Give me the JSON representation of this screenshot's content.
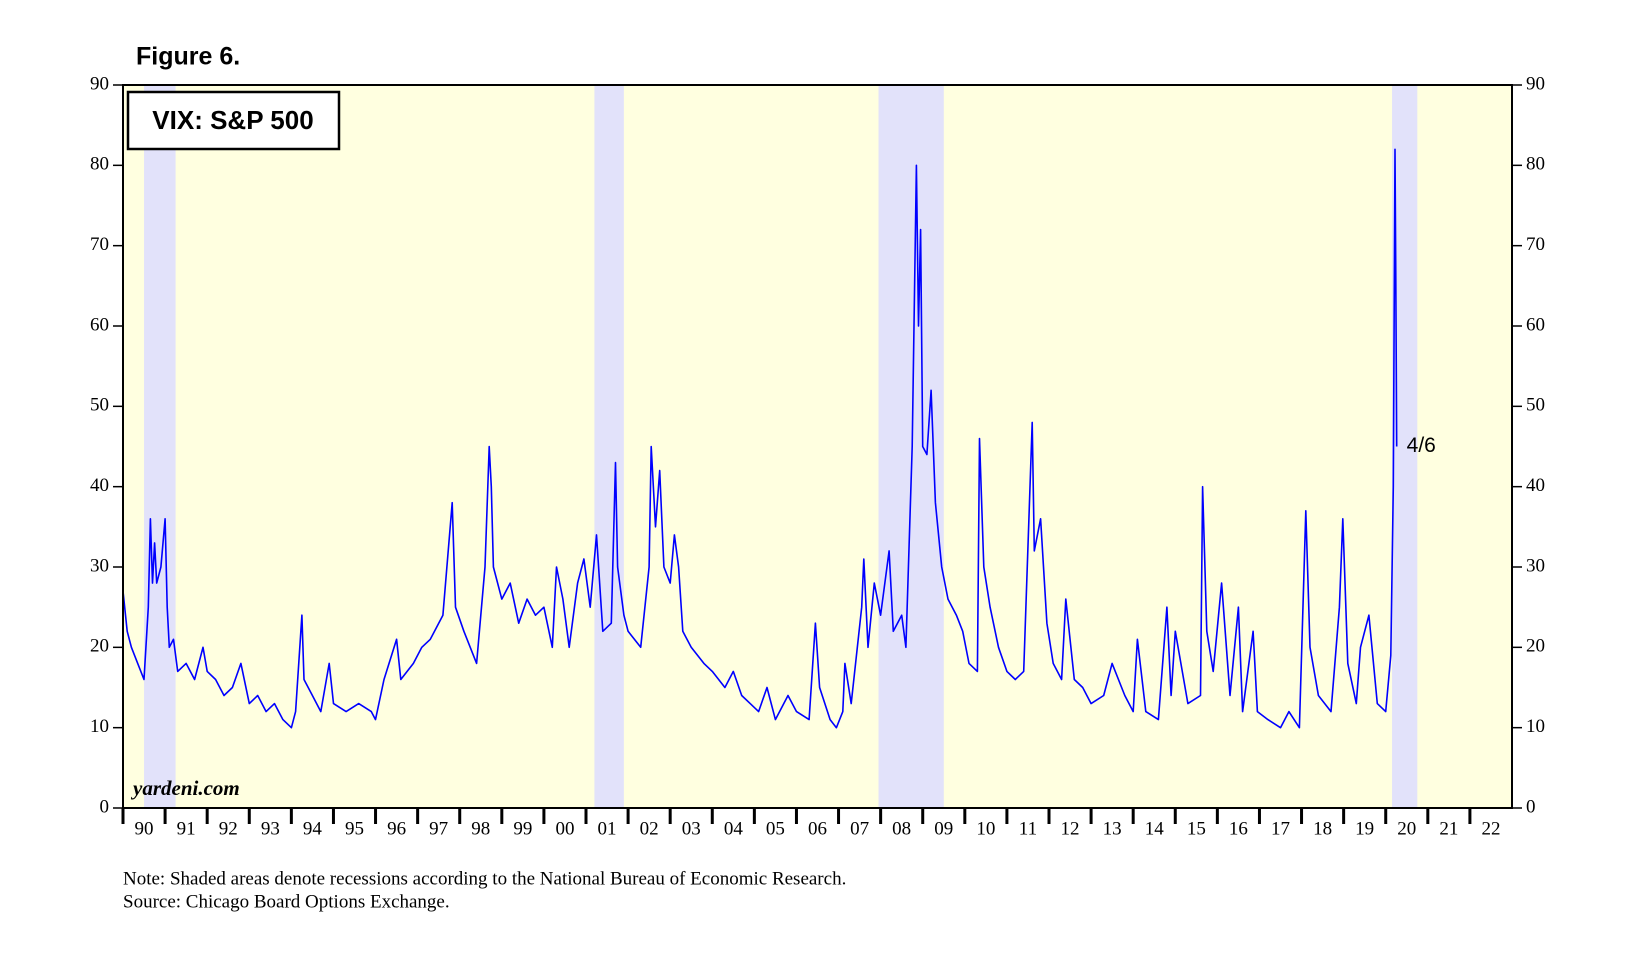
{
  "chart_data": {
    "type": "line",
    "figure_label": "Figure 6.",
    "title": "VIX: S&P 500",
    "watermark": "yardeni.com",
    "notes": [
      "Note: Shaded areas denote recessions according to the National Bureau of Economic Research.",
      "Source: Chicago Board Options Exchange."
    ],
    "annotation": "4/6",
    "color": "#0000ff",
    "background_color": "#ffffe0",
    "recession_color": "#e2e2fa",
    "recessions": [
      [
        1990.5,
        1991.25
      ],
      [
        2001.2,
        2001.9
      ],
      [
        2007.95,
        2009.5
      ],
      [
        2020.15,
        2020.75
      ]
    ],
    "xlim": [
      1990,
      2023
    ],
    "xticks": [
      {
        "value": 1990,
        "label": "90"
      },
      {
        "value": 1991,
        "label": "91"
      },
      {
        "value": 1992,
        "label": "92"
      },
      {
        "value": 1993,
        "label": "93"
      },
      {
        "value": 1994,
        "label": "94"
      },
      {
        "value": 1995,
        "label": "95"
      },
      {
        "value": 1996,
        "label": "96"
      },
      {
        "value": 1997,
        "label": "97"
      },
      {
        "value": 1998,
        "label": "98"
      },
      {
        "value": 1999,
        "label": "99"
      },
      {
        "value": 2000,
        "label": "00"
      },
      {
        "value": 2001,
        "label": "01"
      },
      {
        "value": 2002,
        "label": "02"
      },
      {
        "value": 2003,
        "label": "03"
      },
      {
        "value": 2004,
        "label": "04"
      },
      {
        "value": 2005,
        "label": "05"
      },
      {
        "value": 2006,
        "label": "06"
      },
      {
        "value": 2007,
        "label": "07"
      },
      {
        "value": 2008,
        "label": "08"
      },
      {
        "value": 2009,
        "label": "09"
      },
      {
        "value": 2010,
        "label": "10"
      },
      {
        "value": 2011,
        "label": "11"
      },
      {
        "value": 2012,
        "label": "12"
      },
      {
        "value": 2013,
        "label": "13"
      },
      {
        "value": 2014,
        "label": "14"
      },
      {
        "value": 2015,
        "label": "15"
      },
      {
        "value": 2016,
        "label": "16"
      },
      {
        "value": 2017,
        "label": "17"
      },
      {
        "value": 2018,
        "label": "18"
      },
      {
        "value": 2019,
        "label": "19"
      },
      {
        "value": 2020,
        "label": "20"
      },
      {
        "value": 2021,
        "label": "21"
      },
      {
        "value": 2022,
        "label": "22"
      }
    ],
    "ylim": [
      0,
      90
    ],
    "yticks": [
      0,
      10,
      20,
      30,
      40,
      50,
      60,
      70,
      80,
      90
    ],
    "x": [
      1990.0,
      1990.1,
      1990.2,
      1990.35,
      1990.5,
      1990.6,
      1990.65,
      1990.7,
      1990.75,
      1990.8,
      1990.9,
      1991.0,
      1991.05,
      1991.1,
      1991.2,
      1991.3,
      1991.5,
      1991.7,
      1991.9,
      1992.0,
      1992.2,
      1992.4,
      1992.6,
      1992.8,
      1993.0,
      1993.2,
      1993.4,
      1993.6,
      1993.8,
      1994.0,
      1994.1,
      1994.25,
      1994.3,
      1994.5,
      1994.7,
      1994.9,
      1995.0,
      1995.3,
      1995.6,
      1995.9,
      1996.0,
      1996.2,
      1996.5,
      1996.6,
      1996.9,
      1997.1,
      1997.3,
      1997.6,
      1997.82,
      1997.9,
      1998.1,
      1998.4,
      1998.6,
      1998.7,
      1998.75,
      1998.8,
      1999.0,
      1999.2,
      1999.4,
      1999.6,
      1999.8,
      2000.0,
      2000.2,
      2000.3,
      2000.45,
      2000.6,
      2000.8,
      2000.95,
      2001.1,
      2001.25,
      2001.4,
      2001.6,
      2001.7,
      2001.75,
      2001.9,
      2002.0,
      2002.3,
      2002.5,
      2002.55,
      2002.65,
      2002.75,
      2002.85,
      2003.0,
      2003.1,
      2003.2,
      2003.3,
      2003.5,
      2003.8,
      2004.0,
      2004.3,
      2004.5,
      2004.7,
      2004.9,
      2005.1,
      2005.3,
      2005.5,
      2005.8,
      2006.0,
      2006.3,
      2006.45,
      2006.55,
      2006.8,
      2006.95,
      2007.1,
      2007.15,
      2007.3,
      2007.55,
      2007.6,
      2007.7,
      2007.85,
      2008.0,
      2008.2,
      2008.3,
      2008.5,
      2008.6,
      2008.75,
      2008.85,
      2008.9,
      2008.95,
      2009.0,
      2009.1,
      2009.2,
      2009.3,
      2009.45,
      2009.6,
      2009.8,
      2009.95,
      2010.1,
      2010.3,
      2010.35,
      2010.45,
      2010.6,
      2010.8,
      2011.0,
      2011.2,
      2011.4,
      2011.6,
      2011.65,
      2011.8,
      2011.95,
      2012.1,
      2012.3,
      2012.4,
      2012.6,
      2012.8,
      2013.0,
      2013.3,
      2013.5,
      2013.8,
      2014.0,
      2014.1,
      2014.3,
      2014.6,
      2014.8,
      2014.9,
      2015.0,
      2015.3,
      2015.6,
      2015.65,
      2015.75,
      2015.9,
      2016.1,
      2016.3,
      2016.5,
      2016.6,
      2016.85,
      2016.95,
      2017.2,
      2017.5,
      2017.7,
      2017.95,
      2018.1,
      2018.2,
      2018.4,
      2018.7,
      2018.9,
      2018.98,
      2019.1,
      2019.3,
      2019.4,
      2019.6,
      2019.8,
      2020.0,
      2020.12,
      2020.18,
      2020.22,
      2020.24,
      2020.26
    ],
    "values": [
      27,
      22,
      20,
      18,
      16,
      25,
      36,
      28,
      33,
      28,
      30,
      36,
      25,
      20,
      21,
      17,
      18,
      16,
      20,
      17,
      16,
      14,
      15,
      18,
      13,
      14,
      12,
      13,
      11,
      10,
      12,
      24,
      16,
      14,
      12,
      18,
      13,
      12,
      13,
      12,
      11,
      16,
      21,
      16,
      18,
      20,
      21,
      24,
      38,
      25,
      22,
      18,
      30,
      45,
      40,
      30,
      26,
      28,
      23,
      26,
      24,
      25,
      20,
      30,
      26,
      20,
      28,
      31,
      25,
      34,
      22,
      23,
      43,
      30,
      24,
      22,
      20,
      30,
      45,
      35,
      42,
      30,
      28,
      34,
      30,
      22,
      20,
      18,
      17,
      15,
      17,
      14,
      13,
      12,
      15,
      11,
      14,
      12,
      11,
      23,
      15,
      11,
      10,
      12,
      18,
      13,
      25,
      31,
      20,
      28,
      24,
      32,
      22,
      24,
      20,
      45,
      80,
      60,
      72,
      45,
      44,
      52,
      38,
      30,
      26,
      24,
      22,
      18,
      17,
      46,
      30,
      25,
      20,
      17,
      16,
      17,
      48,
      32,
      36,
      23,
      18,
      16,
      26,
      16,
      15,
      13,
      14,
      18,
      14,
      12,
      21,
      12,
      11,
      25,
      14,
      22,
      13,
      14,
      40,
      22,
      17,
      28,
      14,
      25,
      12,
      22,
      12,
      11,
      10,
      12,
      10,
      37,
      20,
      14,
      12,
      25,
      36,
      18,
      13,
      20,
      24,
      13,
      12,
      19,
      40,
      82,
      66,
      45
    ]
  }
}
